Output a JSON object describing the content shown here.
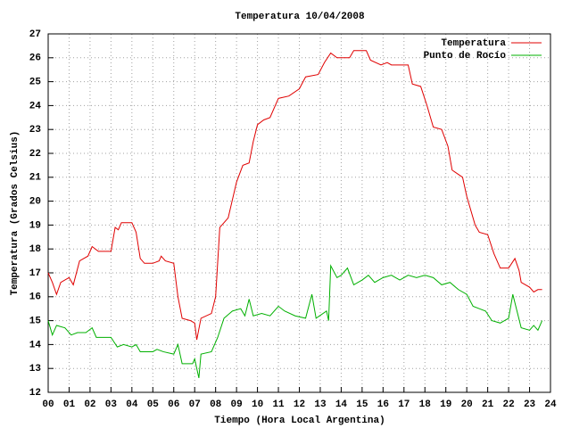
{
  "chart_data": {
    "type": "line",
    "title": "Temperatura 10/04/2008",
    "x_label": "Tiempo (Hora Local Argentina)",
    "y_label": "Temperatura (Grados Celsius)",
    "xlim": [
      0,
      24
    ],
    "xticks": [
      {
        "value": 0,
        "label": "00"
      },
      {
        "value": 1,
        "label": "01"
      },
      {
        "value": 2,
        "label": "02"
      },
      {
        "value": 3,
        "label": "03"
      },
      {
        "value": 4,
        "label": "04"
      },
      {
        "value": 5,
        "label": "05"
      },
      {
        "value": 6,
        "label": "06"
      },
      {
        "value": 7,
        "label": "07"
      },
      {
        "value": 8,
        "label": "08"
      },
      {
        "value": 9,
        "label": "09"
      },
      10,
      11,
      12,
      13,
      14,
      15,
      16,
      17,
      18,
      19,
      20,
      21,
      22,
      23,
      24
    ],
    "ylim": [
      12,
      27
    ],
    "yticks": [
      12,
      13,
      14,
      15,
      16,
      17,
      18,
      19,
      20,
      21,
      22,
      23,
      24,
      25,
      26,
      27
    ],
    "grid": true,
    "legend": "top-right",
    "series": [
      {
        "name": "Temperatura",
        "color": "#e00000",
        "x": [
          0,
          0.2,
          0.4,
          0.6,
          1.0,
          1.2,
          1.5,
          1.9,
          2.1,
          2.4,
          3.0,
          3.2,
          3.35,
          3.5,
          4.0,
          4.2,
          4.4,
          4.6,
          5.0,
          5.3,
          5.4,
          5.6,
          6.0,
          6.2,
          6.4,
          6.8,
          7.0,
          7.1,
          7.3,
          7.8,
          8.0,
          8.2,
          8.6,
          9.0,
          9.3,
          9.6,
          9.8,
          10.0,
          10.3,
          10.6,
          11.0,
          11.5,
          12.0,
          12.3,
          12.9,
          13.2,
          13.5,
          13.8,
          14.4,
          14.6,
          15.2,
          15.4,
          15.9,
          16.2,
          16.4,
          17.2,
          17.4,
          17.8,
          18.1,
          18.4,
          18.8,
          19.1,
          19.3,
          19.8,
          20.0,
          20.4,
          20.6,
          21.0,
          21.3,
          21.6,
          22.0,
          22.3,
          22.5,
          22.6,
          23.0,
          23.2,
          23.4,
          23.6
        ],
        "values": [
          17.0,
          16.6,
          16.1,
          16.6,
          16.8,
          16.5,
          17.5,
          17.7,
          18.1,
          17.9,
          17.9,
          18.9,
          18.8,
          19.1,
          19.1,
          18.7,
          17.6,
          17.4,
          17.4,
          17.5,
          17.7,
          17.5,
          17.4,
          16.0,
          15.1,
          15.0,
          14.9,
          14.2,
          15.1,
          15.3,
          16.0,
          18.9,
          19.3,
          20.8,
          21.5,
          21.6,
          22.5,
          23.2,
          23.4,
          23.5,
          24.3,
          24.4,
          24.7,
          25.2,
          25.3,
          25.8,
          26.2,
          26.0,
          26.0,
          26.3,
          26.3,
          25.9,
          25.7,
          25.8,
          25.7,
          25.7,
          24.9,
          24.8,
          24.0,
          23.1,
          23.0,
          22.3,
          21.3,
          21.0,
          20.2,
          19.0,
          18.7,
          18.6,
          17.8,
          17.2,
          17.2,
          17.6,
          17.1,
          16.6,
          16.4,
          16.2,
          16.3,
          16.3
        ]
      },
      {
        "name": "Punto de Rocío",
        "color": "#00b000",
        "x": [
          0,
          0.2,
          0.4,
          0.8,
          1.1,
          1.4,
          1.8,
          2.1,
          2.3,
          3.0,
          3.3,
          3.6,
          4.0,
          4.2,
          4.4,
          5.0,
          5.2,
          5.5,
          6.0,
          6.2,
          6.4,
          6.9,
          7.0,
          7.2,
          7.3,
          7.8,
          8.1,
          8.4,
          8.8,
          9.2,
          9.4,
          9.6,
          9.8,
          10.2,
          10.6,
          11.0,
          11.3,
          11.8,
          12.3,
          12.6,
          12.8,
          13.3,
          13.4,
          13.5,
          13.8,
          14.0,
          14.3,
          14.6,
          15.0,
          15.3,
          15.6,
          16.0,
          16.4,
          16.8,
          17.2,
          17.6,
          18.0,
          18.4,
          18.8,
          19.2,
          19.6,
          20.0,
          20.3,
          20.6,
          20.9,
          21.2,
          21.6,
          22.0,
          22.2,
          22.4,
          22.6,
          23.0,
          23.2,
          23.4,
          23.6
        ],
        "values": [
          15.0,
          14.4,
          14.8,
          14.7,
          14.4,
          14.5,
          14.5,
          14.7,
          14.3,
          14.3,
          13.9,
          14.0,
          13.9,
          14.0,
          13.7,
          13.7,
          13.8,
          13.7,
          13.6,
          14.0,
          13.2,
          13.2,
          13.4,
          12.6,
          13.6,
          13.7,
          14.3,
          15.1,
          15.4,
          15.5,
          15.2,
          15.9,
          15.2,
          15.3,
          15.2,
          15.6,
          15.4,
          15.2,
          15.1,
          16.1,
          15.1,
          15.4,
          15.0,
          17.3,
          16.8,
          16.9,
          17.2,
          16.5,
          16.7,
          16.9,
          16.6,
          16.8,
          16.9,
          16.7,
          16.9,
          16.8,
          16.9,
          16.8,
          16.5,
          16.6,
          16.3,
          16.1,
          15.6,
          15.5,
          15.4,
          15.0,
          14.9,
          15.1,
          16.1,
          15.4,
          14.7,
          14.6,
          14.8,
          14.6,
          15.0
        ]
      }
    ]
  }
}
